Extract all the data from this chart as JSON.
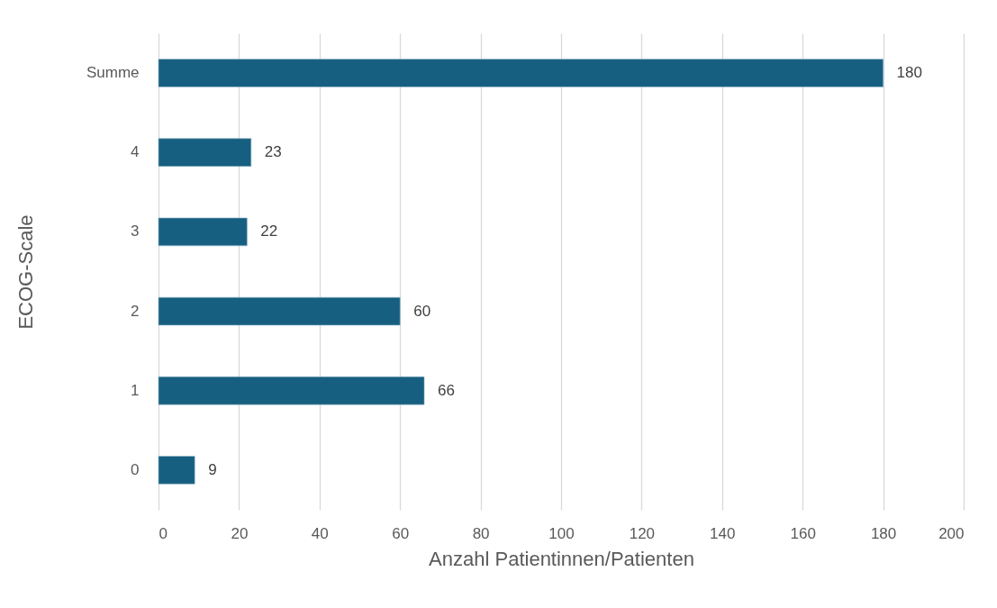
{
  "chart_data": {
    "type": "bar",
    "orientation": "horizontal",
    "xlabel": "Anzahl Patientinnen/Patienten",
    "ylabel": "ECOG-Scale",
    "categories": [
      "Summe",
      "4",
      "3",
      "2",
      "1",
      "0"
    ],
    "values": [
      180,
      23,
      22,
      60,
      66,
      9
    ],
    "color": "#175f80",
    "xlim": [
      0,
      200
    ],
    "xticks": [
      0,
      20,
      40,
      60,
      80,
      100,
      120,
      140,
      160,
      180,
      200
    ],
    "grid": "x",
    "data_labels": true
  }
}
